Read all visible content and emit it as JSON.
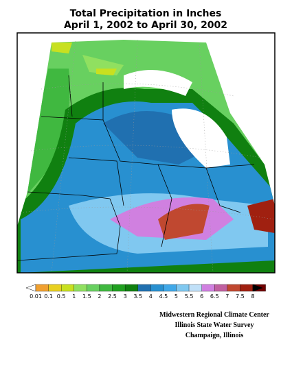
{
  "header": {
    "title": "Total Precipitation in Inches",
    "subtitle": "April 1, 2002 to April 30, 2002"
  },
  "legend": {
    "labels": [
      "0.01",
      "0.1",
      "0.5",
      "1",
      "1.5",
      "2",
      "2.5",
      "3",
      "3.5",
      "4",
      "4.5",
      "5",
      "5.5",
      "6",
      "6.5",
      "7",
      "7.5",
      "8"
    ],
    "colors": [
      "#ffffff",
      "#f0a030",
      "#e8d020",
      "#c8e020",
      "#90e060",
      "#68d060",
      "#40b840",
      "#20a020",
      "#108010",
      "#2070b0",
      "#2890d0",
      "#40a8e8",
      "#80c8f0",
      "#c0e0f8",
      "#d080e0",
      "#c060a0",
      "#c04830",
      "#a02010",
      "#700000",
      "#000000"
    ]
  },
  "credits": [
    "Midwestern Regional Climate Center",
    "Illinois State Water Survey",
    "Champaign, Illinois"
  ]
}
